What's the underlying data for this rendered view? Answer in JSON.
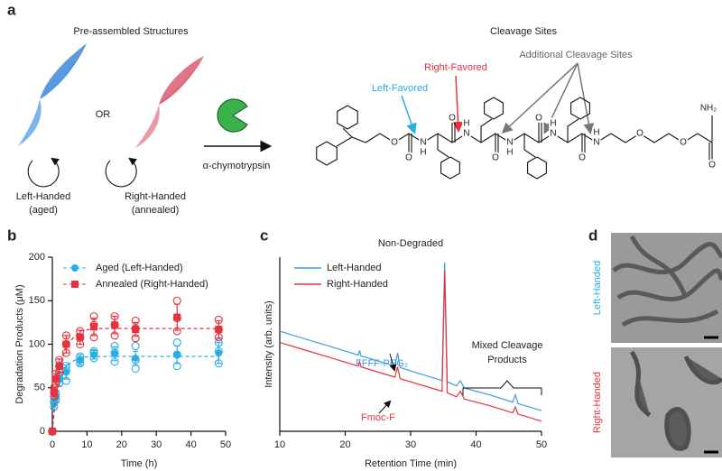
{
  "panel_labels": [
    "a",
    "b",
    "c",
    "d"
  ],
  "panel_a": {
    "left_title": "Pre-assembled Structures",
    "or": "OR",
    "left_name": [
      "Left-Handed",
      "(aged)"
    ],
    "right_name": [
      "Right-Handed",
      "(annealed)"
    ],
    "enzyme": "α-chymotrypsin",
    "right_title": "Cleavage Sites",
    "left_favored": "Left-Favored",
    "right_favored": "Right-Favored",
    "additional": "Additional Cleavage Sites",
    "atoms": [
      "O",
      "O",
      "N",
      "H",
      "O",
      "N",
      "H",
      "O",
      "N",
      "H",
      "O",
      "N",
      "H",
      "O",
      "N",
      "H",
      "O",
      "O",
      "O",
      "NH₂"
    ]
  },
  "chart_data": [
    {
      "type": "line",
      "xlabel": "Time (h)",
      "ylabel": "Degradation Products (μM)",
      "x": [
        0,
        0.5,
        1,
        2,
        4,
        8,
        12,
        18,
        24,
        36,
        48
      ],
      "xlim": [
        0,
        50
      ],
      "xticks": [
        0,
        10,
        20,
        30,
        40,
        50
      ],
      "ylim": [
        0,
        200
      ],
      "yticks": [
        0,
        50,
        100,
        150,
        200
      ],
      "series": [
        {
          "name": "Aged (Left-Handed)",
          "color": "#29aee3",
          "marker": "circle",
          "values": [
            0,
            32,
            40,
            60,
            68,
            82,
            88,
            89,
            84,
            88,
            90
          ],
          "errors": [
            0,
            5,
            6,
            8,
            8,
            6,
            5,
            8,
            8,
            10,
            12
          ],
          "replicates": [
            [
              0,
              0,
              0
            ],
            [
              28,
              33,
              35
            ],
            [
              36,
              40,
              44
            ],
            [
              55,
              60,
              65
            ],
            [
              58,
              70,
              75
            ],
            [
              78,
              82,
              86
            ],
            [
              84,
              90,
              92
            ],
            [
              80,
              90,
              98
            ],
            [
              72,
              82,
              98
            ],
            [
              75,
              88,
              102
            ],
            [
              78,
              92,
              102
            ]
          ],
          "fit": [
            0,
            21,
            37,
            58,
            76,
            85,
            86,
            86,
            86,
            86,
            86
          ]
        },
        {
          "name": "Annealed (Right-Handed)",
          "color": "#e5323f",
          "marker": "square",
          "values": [
            0,
            45,
            60,
            75,
            100,
            108,
            120,
            122,
            117,
            131,
            117
          ],
          "errors": [
            0,
            5,
            6,
            8,
            10,
            8,
            10,
            10,
            8,
            15,
            10
          ],
          "replicates": [
            [
              0,
              0,
              0
            ],
            [
              40,
              45,
              50
            ],
            [
              55,
              60,
              66
            ],
            [
              68,
              75,
              82
            ],
            [
              90,
              100,
              110
            ],
            [
              100,
              108,
              115
            ],
            [
              108,
              122,
              132
            ],
            [
              110,
              122,
              132
            ],
            [
              107,
              118,
              127
            ],
            [
              115,
              130,
              150
            ],
            [
              108,
              117,
              128
            ]
          ],
          "fit": [
            0,
            24,
            43,
            70,
            99,
            115,
            118,
            118,
            118,
            118,
            118
          ]
        }
      ]
    },
    {
      "type": "line",
      "title": "Non-Degraded",
      "xlabel": "Retention Time (min)",
      "ylabel": "Intensity (arb. units)",
      "x": [
        10,
        14,
        18,
        22,
        22.2,
        22.4,
        26,
        27.6,
        28,
        28.4,
        30,
        34,
        34.8,
        35.2,
        35.6,
        37,
        37.6,
        38.2,
        42,
        45.6,
        46,
        46.4,
        50
      ],
      "xlim": [
        10,
        50
      ],
      "xticks": [
        10,
        20,
        30,
        40,
        50
      ],
      "ylim": [
        0,
        100
      ],
      "series": [
        {
          "name": "Left-Handed",
          "color": "#3d9ddf",
          "values": [
            57.5,
            52.9,
            48.4,
            43.8,
            46.5,
            43.3,
            39.3,
            37.4,
            45,
            36.6,
            34.7,
            30.1,
            29.2,
            97,
            28.4,
            26.1,
            29,
            24.8,
            21,
            16.8,
            21,
            15.9,
            11.9
          ]
        },
        {
          "name": "Right-Handed",
          "color": "#e5323f",
          "values": [
            51,
            46.5,
            42,
            37.4,
            40,
            37,
            32.9,
            31.1,
            37,
            30.2,
            28.4,
            23.9,
            23,
            92,
            22.1,
            19.8,
            23,
            18.5,
            14.8,
            10.6,
            14,
            9.9,
            5.8
          ]
        }
      ],
      "annotations": [
        "FFFF-PEG₂",
        "Fmoc-F",
        "Mixed Cleavage",
        "Products"
      ]
    }
  ],
  "panel_d": {
    "labels": [
      "Left-Handed",
      "Right-Handed"
    ]
  }
}
